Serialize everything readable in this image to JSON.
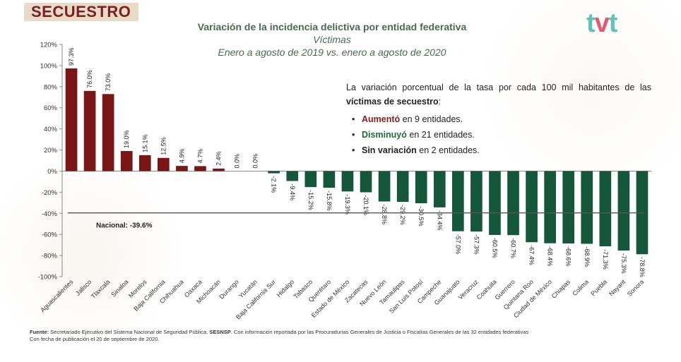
{
  "header": {
    "section_badge": "SECUESTRO",
    "logo_parts": [
      "t",
      "v",
      "t"
    ]
  },
  "titles": {
    "title": "Variación de la incidencia delictiva por entidad federativa",
    "subtitle": "Víctimas",
    "period": "Enero a agosto de 2019 vs. enero a agosto de 2020"
  },
  "legend": {
    "intro": "La variación porcentual de la tasa por cada 100 mil habitantes de las",
    "intro_bold": "víctimas de secuestro",
    "intro_end": ":",
    "items": [
      {
        "bold": "Aumentó",
        "rest": " en 9 entidades."
      },
      {
        "bold": "Disminuyó",
        "rest": " en 21 entidades."
      },
      {
        "bold": "Sin variación",
        "rest": " en 2 entidades."
      }
    ]
  },
  "colors": {
    "increase": "#7a1616",
    "decrease": "#14573a",
    "national_line": "#555555",
    "axis": "#888888"
  },
  "footer": {
    "source_label": "Fuente:",
    "source_text": " Secretariado Ejecutivo del Sistema Nacional de Seguridad Pública, ",
    "source_bold": "SESNSP",
    "source_text2": ". Con información reportada por las Procuradurías Generales de Justicia o Fiscalías Generales de las 32 entidades federativas",
    "publication": "Con fecha de publicación el 20 de septiembre de 2020."
  },
  "chart_data": {
    "type": "bar",
    "title": "Variación de la incidencia delictiva por entidad federativa",
    "ylim": [
      -100,
      120
    ],
    "yticks": [
      -100,
      -80,
      -60,
      -40,
      -20,
      0,
      20,
      40,
      60,
      80,
      100,
      120
    ],
    "ytick_labels": [
      "-100%",
      "-80%",
      "-60%",
      "-40%",
      "-20%",
      "0%",
      "20%",
      "40%",
      "60%",
      "80%",
      "100%",
      "120%"
    ],
    "categories": [
      "Aguascalientes",
      "Jalisco",
      "Tlaxcala",
      "Sinaloa",
      "Morelos",
      "Baja California",
      "Chihuahua",
      "Oaxaca",
      "Michoacán",
      "Durango",
      "Yucatán",
      "Baja California Sur",
      "Hidalgo",
      "Tabasco",
      "Querétaro",
      "Estado de México",
      "Zacatecas",
      "Nuevo León",
      "Tamaulipas",
      "San Luis Potosí",
      "Campeche",
      "Guanajuato",
      "Veracruz",
      "Coahuila",
      "Guerrero",
      "Quintana Roo",
      "Ciudad de México",
      "Chiapas",
      "Colima",
      "Puebla",
      "Nayarit",
      "Sonora"
    ],
    "values": [
      97.3,
      76.0,
      73.0,
      19.0,
      15.1,
      12.5,
      4.9,
      4.7,
      2.4,
      0.0,
      0.0,
      -2.1,
      -9.4,
      -15.2,
      -15.8,
      -19.3,
      -20.1,
      -28.8,
      -29.2,
      -30.5,
      -34.4,
      -57.0,
      -57.3,
      -60.5,
      -60.7,
      -67.4,
      -68.4,
      -68.6,
      -68.9,
      -71.3,
      -75.3,
      -78.8
    ],
    "value_labels": [
      "97.3%",
      "76.0%",
      "73.0%",
      "19.0%",
      "15.1%",
      "12.5%",
      "4.9%",
      "4.7%",
      "2.4%",
      "0.0%",
      "0.0%",
      "-2.1%",
      "-9.4%",
      "-15.2%",
      "-15.8%",
      "-19.3%",
      "-20.1%",
      "-28.8%",
      "-29.2%",
      "-30.5%",
      "-34.4%",
      "-57.0%",
      "-57.3%",
      "-60.5%",
      "-60.7%",
      "-67.4%",
      "-68.4%",
      "-68.6%",
      "-68.9%",
      "-71.3%",
      "-75.3%",
      "-78.8%"
    ],
    "reference_line": {
      "label": "Nacional: -39.6%",
      "value": -39.6
    },
    "grid": false,
    "legend": "none"
  }
}
